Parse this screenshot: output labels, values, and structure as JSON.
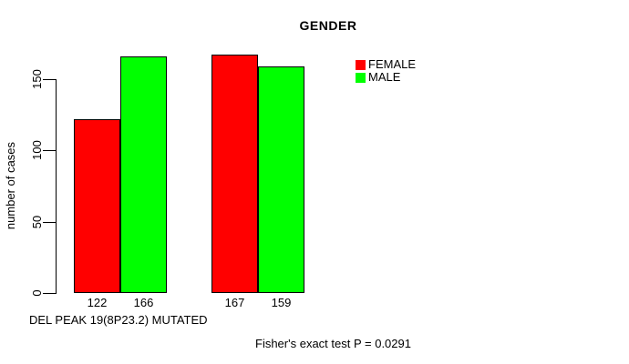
{
  "page": {
    "background": "#ffffff",
    "text_color": "#000000",
    "axis_color": "#000000"
  },
  "chart_data": {
    "type": "bar",
    "title": "GENDER",
    "ylabel": "number of cases",
    "xlabel": "DEL PEAK 19(8P23.2) MUTATED",
    "footnote": "Fisher's exact test P = 0.0291",
    "ylim": [
      0,
      150
    ],
    "y_ticks": [
      0,
      50,
      100,
      150
    ],
    "grid": false,
    "legend_position": "right",
    "series": [
      {
        "name": "FEMALE",
        "color": "#ff0000",
        "values": [
          122,
          167
        ]
      },
      {
        "name": "MALE",
        "color": "#00ff00",
        "values": [
          166,
          159
        ]
      }
    ],
    "bar_value_labels": [
      "122",
      "166",
      "167",
      "159"
    ]
  }
}
